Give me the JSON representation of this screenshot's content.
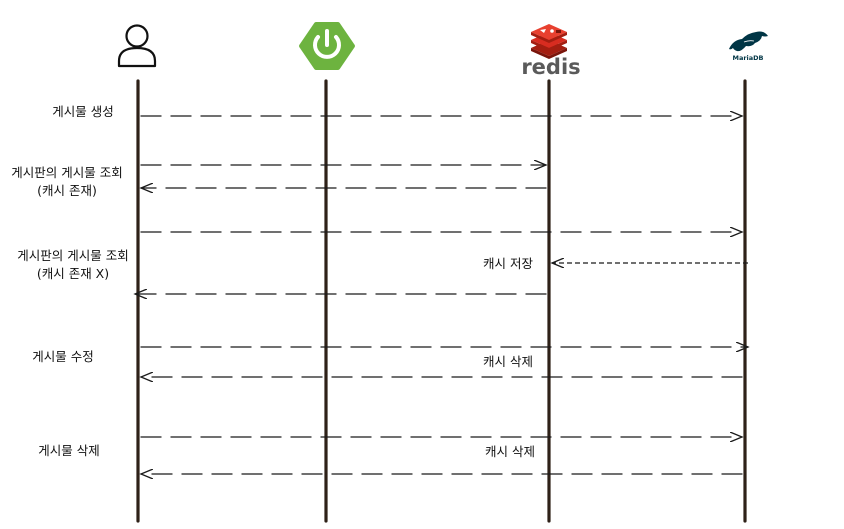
{
  "participants": {
    "user": {
      "icon": "user-icon"
    },
    "spring": {
      "icon": "spring-power-icon",
      "color": "#6db33f"
    },
    "redis": {
      "icon": "redis-icon",
      "label": "redis",
      "color": "#d82c20"
    },
    "mariadb": {
      "icon": "mariadb-seal-icon",
      "label": "MariaDB",
      "color": "#003545"
    }
  },
  "flows": [
    {
      "label": "게시물 생성"
    },
    {
      "label_line1": "게시판의 게시물 조회",
      "label_line2": "(캐시 존재)"
    },
    {
      "label_line1": "게시판의 게시물 조회",
      "label_line2": "(캐시 존재 X)",
      "note": "캐시 저장"
    },
    {
      "label": "게시물 수정",
      "note": "캐시 삭제"
    },
    {
      "label": "게시물 삭제",
      "note": "캐시 삭제"
    }
  ]
}
